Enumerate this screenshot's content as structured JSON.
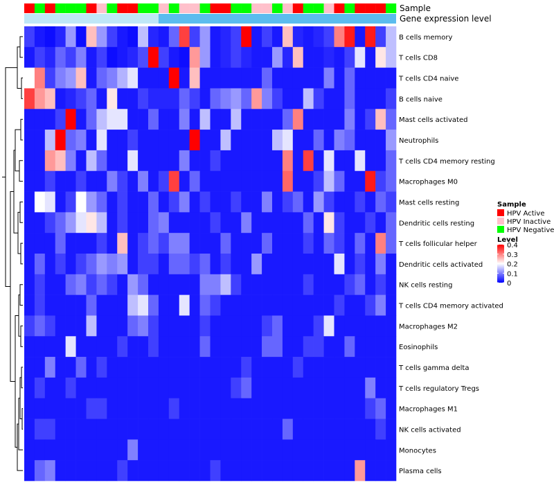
{
  "chart_data": {
    "type": "heatmap",
    "annotation_labels": {
      "sample": "Sample",
      "gene_expression": "Gene expression level"
    },
    "rows": [
      "B cells memory",
      "T cells CD8",
      "T cells CD4 naive",
      "B cells naive",
      "Mast cells activated",
      "Neutrophils",
      "T cells CD4 memory resting",
      "Macrophages M0",
      "Mast cells resting",
      "Dendritic cells resting",
      "T cells follicular helper",
      "Dendritic cells activated",
      "NK cells resting",
      "T cells CD4 memory activated",
      "Macrophages M2",
      "Eosinophils",
      "T cells gamma delta",
      "T cells regulatory  Tregs",
      "Macrophages M1",
      "NK cells activated",
      "Monocytes",
      "Plasma cells"
    ],
    "samples": [
      "A",
      "N",
      "A",
      "N",
      "N",
      "N",
      "A",
      "I",
      "N",
      "A",
      "A",
      "N",
      "N",
      "I",
      "N",
      "I",
      "I",
      "N",
      "A",
      "A",
      "N",
      "N",
      "I",
      "I",
      "N",
      "I",
      "A",
      "N",
      "N",
      "I",
      "A",
      "N",
      "A",
      "A",
      "A",
      "N"
    ],
    "sample_legend": {
      "title": "Sample",
      "items": [
        {
          "key": "A",
          "label": "HPV Active",
          "color": "#ff0000"
        },
        {
          "key": "I",
          "label": "HPV Inactive",
          "color": "#ffc0cb"
        },
        {
          "key": "N",
          "label": "HPV Negative",
          "color": "#00ff00"
        }
      ]
    },
    "gene_expression": {
      "split_col": 13,
      "colors": [
        "#bfe7f7",
        "#5bbcee"
      ]
    },
    "color_scale": {
      "title": "Level",
      "min": 0,
      "max": 0.4,
      "ticks": [
        0.4,
        0.3,
        0.2,
        0.1,
        0
      ],
      "stops": [
        "#0000ff",
        "#ffffff",
        "#ff0000"
      ]
    },
    "values": [
      [
        0.05,
        0.02,
        0.01,
        0.03,
        0.12,
        0.01,
        0.25,
        0.12,
        0.05,
        0.02,
        0.01,
        0.15,
        0.03,
        0.02,
        0.08,
        0.35,
        0.05,
        0.12,
        0.02,
        0.03,
        0.05,
        0.4,
        0.02,
        0.05,
        0.02,
        0.25,
        0.03,
        0.02,
        0.03,
        0.05,
        0.3,
        0.38,
        0.02,
        0.38,
        0.05,
        0.15
      ],
      [
        0.02,
        0.05,
        0.03,
        0.08,
        0.05,
        0.1,
        0.02,
        0.05,
        0.01,
        0.02,
        0.03,
        0.06,
        0.4,
        0.05,
        0.02,
        0.01,
        0.28,
        0.12,
        0.02,
        0.03,
        0.05,
        0.03,
        0.02,
        0.02,
        0.12,
        0.03,
        0.25,
        0.02,
        0.02,
        0.03,
        0.02,
        0.05,
        0.18,
        0.02,
        0.22,
        0.15
      ],
      [
        0.2,
        0.3,
        0.05,
        0.1,
        0.12,
        0.25,
        0.02,
        0.08,
        0.1,
        0.14,
        0.18,
        0.02,
        0.02,
        0.02,
        0.4,
        0.02,
        0.25,
        0.02,
        0.02,
        0.02,
        0.02,
        0.02,
        0.02,
        0.08,
        0.02,
        0.02,
        0.02,
        0.02,
        0.02,
        0.1,
        0.02,
        0.08,
        0.02,
        0.02,
        0.02,
        0.02
      ],
      [
        0.35,
        0.28,
        0.25,
        0.02,
        0.03,
        0.05,
        0.08,
        0.02,
        0.22,
        0.02,
        0.02,
        0.05,
        0.03,
        0.03,
        0.03,
        0.08,
        0.05,
        0.02,
        0.08,
        0.1,
        0.12,
        0.08,
        0.28,
        0.1,
        0.05,
        0.02,
        0.02,
        0.15,
        0.05,
        0.02,
        0.02,
        0.08,
        0.02,
        0.02,
        0.02,
        0.05
      ],
      [
        0.02,
        0.02,
        0.02,
        0.05,
        0.4,
        0.02,
        0.08,
        0.15,
        0.18,
        0.18,
        0.02,
        0.02,
        0.08,
        0.02,
        0.02,
        0.1,
        0.02,
        0.15,
        0.02,
        0.02,
        0.15,
        0.02,
        0.02,
        0.02,
        0.02,
        0.08,
        0.3,
        0.02,
        0.02,
        0.02,
        0.02,
        0.1,
        0.02,
        0.05,
        0.25,
        0.08
      ],
      [
        0.02,
        0.02,
        0.15,
        0.4,
        0.08,
        0.1,
        0.02,
        0.18,
        0.02,
        0.02,
        0.05,
        0.02,
        0.02,
        0.02,
        0.02,
        0.02,
        0.4,
        0.02,
        0.02,
        0.15,
        0.02,
        0.02,
        0.02,
        0.02,
        0.15,
        0.18,
        0.02,
        0.02,
        0.08,
        0.02,
        0.1,
        0.08,
        0.02,
        0.02,
        0.02,
        0.12
      ],
      [
        0.02,
        0.02,
        0.28,
        0.25,
        0.1,
        0.02,
        0.15,
        0.08,
        0.02,
        0.02,
        0.18,
        0.02,
        0.02,
        0.02,
        0.02,
        0.1,
        0.02,
        0.02,
        0.05,
        0.02,
        0.02,
        0.02,
        0.02,
        0.02,
        0.02,
        0.3,
        0.02,
        0.35,
        0.02,
        0.18,
        0.02,
        0.02,
        0.18,
        0.02,
        0.02,
        0.08
      ],
      [
        0.02,
        0.02,
        0.05,
        0.02,
        0.02,
        0.05,
        0.02,
        0.02,
        0.1,
        0.05,
        0.02,
        0.1,
        0.02,
        0.05,
        0.35,
        0.02,
        0.08,
        0.02,
        0.02,
        0.02,
        0.02,
        0.02,
        0.02,
        0.02,
        0.02,
        0.32,
        0.02,
        0.02,
        0.05,
        0.15,
        0.08,
        0.02,
        0.02,
        0.38,
        0.05,
        0.08
      ],
      [
        0.02,
        0.2,
        0.18,
        0.02,
        0.05,
        0.2,
        0.12,
        0.08,
        0.02,
        0.05,
        0.02,
        0.02,
        0.08,
        0.02,
        0.05,
        0.1,
        0.02,
        0.05,
        0.02,
        0.02,
        0.05,
        0.02,
        0.02,
        0.1,
        0.02,
        0.05,
        0.08,
        0.02,
        0.12,
        0.05,
        0.02,
        0.02,
        0.05,
        0.02,
        0.08,
        0.05
      ],
      [
        0.02,
        0.02,
        0.05,
        0.08,
        0.12,
        0.18,
        0.22,
        0.15,
        0.02,
        0.05,
        0.02,
        0.02,
        0.08,
        0.1,
        0.02,
        0.02,
        0.02,
        0.02,
        0.05,
        0.02,
        0.02,
        0.1,
        0.02,
        0.02,
        0.02,
        0.02,
        0.02,
        0.08,
        0.02,
        0.22,
        0.05,
        0.02,
        0.02,
        0.05,
        0.02,
        0.08
      ],
      [
        0.02,
        0.02,
        0.02,
        0.08,
        0.02,
        0.02,
        0.02,
        0.05,
        0.02,
        0.25,
        0.02,
        0.05,
        0.08,
        0.05,
        0.1,
        0.1,
        0.02,
        0.02,
        0.02,
        0.08,
        0.02,
        0.02,
        0.02,
        0.08,
        0.02,
        0.02,
        0.02,
        0.05,
        0.02,
        0.08,
        0.05,
        0.02,
        0.08,
        0.02,
        0.3,
        0.08
      ],
      [
        0.02,
        0.08,
        0.02,
        0.05,
        0.02,
        0.05,
        0.08,
        0.12,
        0.1,
        0.12,
        0.02,
        0.05,
        0.05,
        0.02,
        0.08,
        0.08,
        0.05,
        0.08,
        0.02,
        0.05,
        0.02,
        0.02,
        0.12,
        0.02,
        0.02,
        0.02,
        0.02,
        0.02,
        0.02,
        0.02,
        0.18,
        0.02,
        0.05,
        0.02,
        0.1,
        0.02
      ],
      [
        0.02,
        0.05,
        0.02,
        0.02,
        0.08,
        0.1,
        0.05,
        0.08,
        0.05,
        0.02,
        0.12,
        0.08,
        0.02,
        0.02,
        0.02,
        0.02,
        0.02,
        0.1,
        0.1,
        0.15,
        0.05,
        0.02,
        0.02,
        0.02,
        0.02,
        0.02,
        0.02,
        0.05,
        0.02,
        0.02,
        0.02,
        0.05,
        0.08,
        0.02,
        0.05,
        0.02
      ],
      [
        0.02,
        0.05,
        0.02,
        0.02,
        0.02,
        0.02,
        0.08,
        0.02,
        0.02,
        0.02,
        0.15,
        0.18,
        0.08,
        0.02,
        0.02,
        0.18,
        0.02,
        0.08,
        0.05,
        0.02,
        0.02,
        0.02,
        0.02,
        0.02,
        0.02,
        0.02,
        0.02,
        0.02,
        0.02,
        0.02,
        0.05,
        0.02,
        0.02,
        0.05,
        0.1,
        0.02
      ],
      [
        0.05,
        0.08,
        0.05,
        0.02,
        0.02,
        0.02,
        0.15,
        0.02,
        0.02,
        0.02,
        0.08,
        0.1,
        0.05,
        0.02,
        0.02,
        0.02,
        0.02,
        0.05,
        0.02,
        0.02,
        0.02,
        0.02,
        0.02,
        0.05,
        0.08,
        0.02,
        0.02,
        0.02,
        0.05,
        0.18,
        0.02,
        0.02,
        0.02,
        0.02,
        0.02,
        0.02
      ],
      [
        0.02,
        0.02,
        0.02,
        0.02,
        0.18,
        0.02,
        0.02,
        0.02,
        0.02,
        0.05,
        0.02,
        0.02,
        0.05,
        0.02,
        0.02,
        0.02,
        0.02,
        0.08,
        0.02,
        0.02,
        0.02,
        0.02,
        0.02,
        0.08,
        0.08,
        0.02,
        0.02,
        0.05,
        0.05,
        0.02,
        0.02,
        0.08,
        0.02,
        0.02,
        0.02,
        0.02
      ],
      [
        0.02,
        0.02,
        0.1,
        0.02,
        0.02,
        0.08,
        0.02,
        0.05,
        0.02,
        0.02,
        0.02,
        0.02,
        0.02,
        0.02,
        0.02,
        0.02,
        0.02,
        0.02,
        0.02,
        0.02,
        0.02,
        0.05,
        0.02,
        0.02,
        0.02,
        0.02,
        0.05,
        0.02,
        0.02,
        0.02,
        0.02,
        0.02,
        0.02,
        0.02,
        0.02,
        0.02
      ],
      [
        0.02,
        0.05,
        0.02,
        0.02,
        0.05,
        0.02,
        0.02,
        0.02,
        0.02,
        0.02,
        0.02,
        0.02,
        0.02,
        0.02,
        0.02,
        0.02,
        0.02,
        0.02,
        0.02,
        0.02,
        0.05,
        0.08,
        0.02,
        0.02,
        0.02,
        0.02,
        0.02,
        0.02,
        0.02,
        0.02,
        0.02,
        0.02,
        0.02,
        0.1,
        0.02,
        0.02
      ],
      [
        0.02,
        0.02,
        0.02,
        0.02,
        0.02,
        0.02,
        0.05,
        0.05,
        0.02,
        0.02,
        0.02,
        0.02,
        0.02,
        0.02,
        0.05,
        0.02,
        0.02,
        0.02,
        0.02,
        0.02,
        0.02,
        0.02,
        0.02,
        0.02,
        0.02,
        0.02,
        0.02,
        0.02,
        0.02,
        0.02,
        0.02,
        0.02,
        0.02,
        0.05,
        0.08,
        0.02
      ],
      [
        0.02,
        0.05,
        0.05,
        0.02,
        0.02,
        0.02,
        0.02,
        0.02,
        0.02,
        0.02,
        0.02,
        0.02,
        0.02,
        0.02,
        0.02,
        0.02,
        0.02,
        0.02,
        0.02,
        0.02,
        0.02,
        0.02,
        0.02,
        0.02,
        0.02,
        0.08,
        0.02,
        0.02,
        0.02,
        0.02,
        0.02,
        0.02,
        0.02,
        0.02,
        0.05,
        0.02
      ],
      [
        0.02,
        0.02,
        0.02,
        0.02,
        0.02,
        0.02,
        0.02,
        0.02,
        0.02,
        0.02,
        0.1,
        0.02,
        0.02,
        0.02,
        0.02,
        0.02,
        0.02,
        0.02,
        0.02,
        0.02,
        0.02,
        0.02,
        0.02,
        0.02,
        0.02,
        0.02,
        0.02,
        0.02,
        0.02,
        0.02,
        0.02,
        0.02,
        0.02,
        0.02,
        0.02,
        0.02
      ],
      [
        0.02,
        0.08,
        0.1,
        0.02,
        0.02,
        0.02,
        0.02,
        0.02,
        0.02,
        0.05,
        0.02,
        0.02,
        0.02,
        0.02,
        0.02,
        0.02,
        0.02,
        0.02,
        0.05,
        0.02,
        0.02,
        0.02,
        0.02,
        0.02,
        0.02,
        0.02,
        0.02,
        0.02,
        0.02,
        0.02,
        0.02,
        0.02,
        0.28,
        0.02,
        0.02,
        0.02
      ]
    ]
  }
}
